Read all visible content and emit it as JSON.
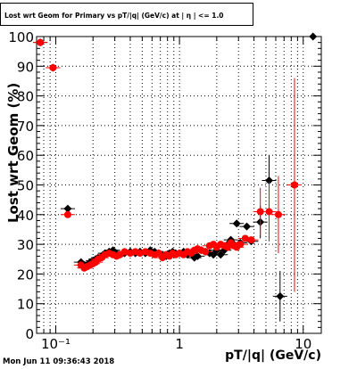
{
  "title": "Lost wrt Geom for Primary vs pT/|q| (GeV/c) at | η | <= 1.0",
  "timestamp": "Mon Jun 11 09:36:43 2018",
  "colors": {
    "black_series": "#000000",
    "red_series": "#ff0000",
    "grid": "#000000"
  },
  "chart_data": {
    "type": "scatter",
    "title": "Lost wrt Geom for Primary vs pT/|q| (GeV/c) at | η | <= 1.0",
    "xlabel": "pT/|q| (GeV/c)",
    "ylabel": "Lost wrt Geom (%)",
    "x_scale": "log",
    "xlim": [
      0.07,
      14
    ],
    "ylim": [
      0,
      100
    ],
    "grid": true,
    "x_tick_labels": [
      "10⁻¹",
      "1",
      "10"
    ],
    "x_tick_values": [
      0.1,
      1,
      10
    ],
    "y_tick_labels": [
      "0",
      "10",
      "20",
      "30",
      "40",
      "50",
      "60",
      "70",
      "80",
      "90",
      "100"
    ],
    "y_tick_values": [
      0,
      10,
      20,
      30,
      40,
      50,
      60,
      70,
      80,
      90,
      100
    ],
    "series": [
      {
        "color": "#000000",
        "points": [
          {
            "x": 0.075,
            "y": 98
          },
          {
            "x": 0.095,
            "y": 89.5
          },
          {
            "x": 0.125,
            "y": 42
          },
          {
            "x": 0.16,
            "y": 24
          },
          {
            "x": 0.17,
            "y": 23
          },
          {
            "x": 0.18,
            "y": 23
          },
          {
            "x": 0.19,
            "y": 24
          },
          {
            "x": 0.2,
            "y": 24.5
          },
          {
            "x": 0.21,
            "y": 25
          },
          {
            "x": 0.22,
            "y": 25.5
          },
          {
            "x": 0.235,
            "y": 26
          },
          {
            "x": 0.25,
            "y": 27
          },
          {
            "x": 0.27,
            "y": 27.5
          },
          {
            "x": 0.29,
            "y": 28
          },
          {
            "x": 0.31,
            "y": 27
          },
          {
            "x": 0.33,
            "y": 26.5
          },
          {
            "x": 0.36,
            "y": 27
          },
          {
            "x": 0.4,
            "y": 27.5
          },
          {
            "x": 0.44,
            "y": 27
          },
          {
            "x": 0.48,
            "y": 27.5
          },
          {
            "x": 0.53,
            "y": 27
          },
          {
            "x": 0.58,
            "y": 28
          },
          {
            "x": 0.63,
            "y": 27.5
          },
          {
            "x": 0.68,
            "y": 27
          },
          {
            "x": 0.73,
            "y": 26.5
          },
          {
            "x": 0.78,
            "y": 26
          },
          {
            "x": 0.83,
            "y": 27
          },
          {
            "x": 0.88,
            "y": 27.5
          },
          {
            "x": 0.93,
            "y": 27
          },
          {
            "x": 1.0,
            "y": 27
          },
          {
            "x": 1.08,
            "y": 27.5
          },
          {
            "x": 1.16,
            "y": 26.5
          },
          {
            "x": 1.24,
            "y": 27
          },
          {
            "x": 1.32,
            "y": 25.5
          },
          {
            "x": 1.4,
            "y": 26
          },
          {
            "x": 1.5,
            "y": 28
          },
          {
            "x": 1.62,
            "y": 27.5
          },
          {
            "x": 1.75,
            "y": 27
          },
          {
            "x": 1.88,
            "y": 26.5
          },
          {
            "x": 2.0,
            "y": 28
          },
          {
            "x": 2.15,
            "y": 26.5
          },
          {
            "x": 2.3,
            "y": 28
          },
          {
            "x": 2.45,
            "y": 30
          },
          {
            "x": 2.6,
            "y": 31.5
          },
          {
            "x": 2.75,
            "y": 30
          },
          {
            "x": 2.9,
            "y": 37
          },
          {
            "x": 3.1,
            "y": 30.5
          },
          {
            "x": 3.5,
            "y": 36
          },
          {
            "x": 3.8,
            "y": 31
          },
          {
            "x": 4.5,
            "y": 37.5
          },
          {
            "x": 5.3,
            "y": 51.5
          },
          {
            "x": 6.5,
            "y": 12.5
          },
          {
            "x": 12.0,
            "y": 100
          }
        ],
        "errors": [
          {
            "x": 4.5,
            "lo": 32,
            "hi": 43
          },
          {
            "x": 5.3,
            "lo": 42,
            "hi": 60
          },
          {
            "x": 6.5,
            "lo": 4,
            "hi": 21
          }
        ]
      },
      {
        "color": "#ff0000",
        "points": [
          {
            "x": 0.075,
            "y": 98
          },
          {
            "x": 0.095,
            "y": 89.5
          },
          {
            "x": 0.125,
            "y": 40
          },
          {
            "x": 0.16,
            "y": 23
          },
          {
            "x": 0.17,
            "y": 22
          },
          {
            "x": 0.18,
            "y": 22.5
          },
          {
            "x": 0.19,
            "y": 23
          },
          {
            "x": 0.2,
            "y": 23.5
          },
          {
            "x": 0.21,
            "y": 24
          },
          {
            "x": 0.22,
            "y": 25
          },
          {
            "x": 0.235,
            "y": 25.5
          },
          {
            "x": 0.25,
            "y": 26.5
          },
          {
            "x": 0.27,
            "y": 27
          },
          {
            "x": 0.29,
            "y": 26.5
          },
          {
            "x": 0.31,
            "y": 26
          },
          {
            "x": 0.33,
            "y": 26.5
          },
          {
            "x": 0.36,
            "y": 27.5
          },
          {
            "x": 0.4,
            "y": 27
          },
          {
            "x": 0.44,
            "y": 27.5
          },
          {
            "x": 0.48,
            "y": 27
          },
          {
            "x": 0.53,
            "y": 27.5
          },
          {
            "x": 0.58,
            "y": 27
          },
          {
            "x": 0.63,
            "y": 26.5
          },
          {
            "x": 0.68,
            "y": 27
          },
          {
            "x": 0.73,
            "y": 25.5
          },
          {
            "x": 0.78,
            "y": 26.5
          },
          {
            "x": 0.83,
            "y": 26
          },
          {
            "x": 0.88,
            "y": 27
          },
          {
            "x": 0.93,
            "y": 26.5
          },
          {
            "x": 1.0,
            "y": 27
          },
          {
            "x": 1.08,
            "y": 26.5
          },
          {
            "x": 1.16,
            "y": 27.5
          },
          {
            "x": 1.24,
            "y": 27
          },
          {
            "x": 1.32,
            "y": 28
          },
          {
            "x": 1.4,
            "y": 28.5
          },
          {
            "x": 1.5,
            "y": 28
          },
          {
            "x": 1.62,
            "y": 27.5
          },
          {
            "x": 1.75,
            "y": 29.5
          },
          {
            "x": 1.88,
            "y": 30
          },
          {
            "x": 2.0,
            "y": 29
          },
          {
            "x": 2.15,
            "y": 30
          },
          {
            "x": 2.3,
            "y": 29.5
          },
          {
            "x": 2.45,
            "y": 29
          },
          {
            "x": 2.6,
            "y": 30.5
          },
          {
            "x": 2.75,
            "y": 29.5
          },
          {
            "x": 2.9,
            "y": 29
          },
          {
            "x": 3.1,
            "y": 30
          },
          {
            "x": 3.4,
            "y": 32
          },
          {
            "x": 3.8,
            "y": 31.5
          },
          {
            "x": 4.5,
            "y": 41
          },
          {
            "x": 5.3,
            "y": 41
          },
          {
            "x": 6.3,
            "y": 40
          },
          {
            "x": 8.5,
            "y": 50
          }
        ],
        "errors": [
          {
            "x": 4.5,
            "lo": 33,
            "hi": 49
          },
          {
            "x": 5.3,
            "lo": 31,
            "hi": 51
          },
          {
            "x": 6.3,
            "lo": 27,
            "hi": 53
          },
          {
            "x": 8.5,
            "lo": 14,
            "hi": 86
          }
        ]
      }
    ]
  },
  "labels": {
    "x_axis": "pT/|q| (GeV/c)",
    "y_axis": "Lost wrt Geom (%)"
  }
}
